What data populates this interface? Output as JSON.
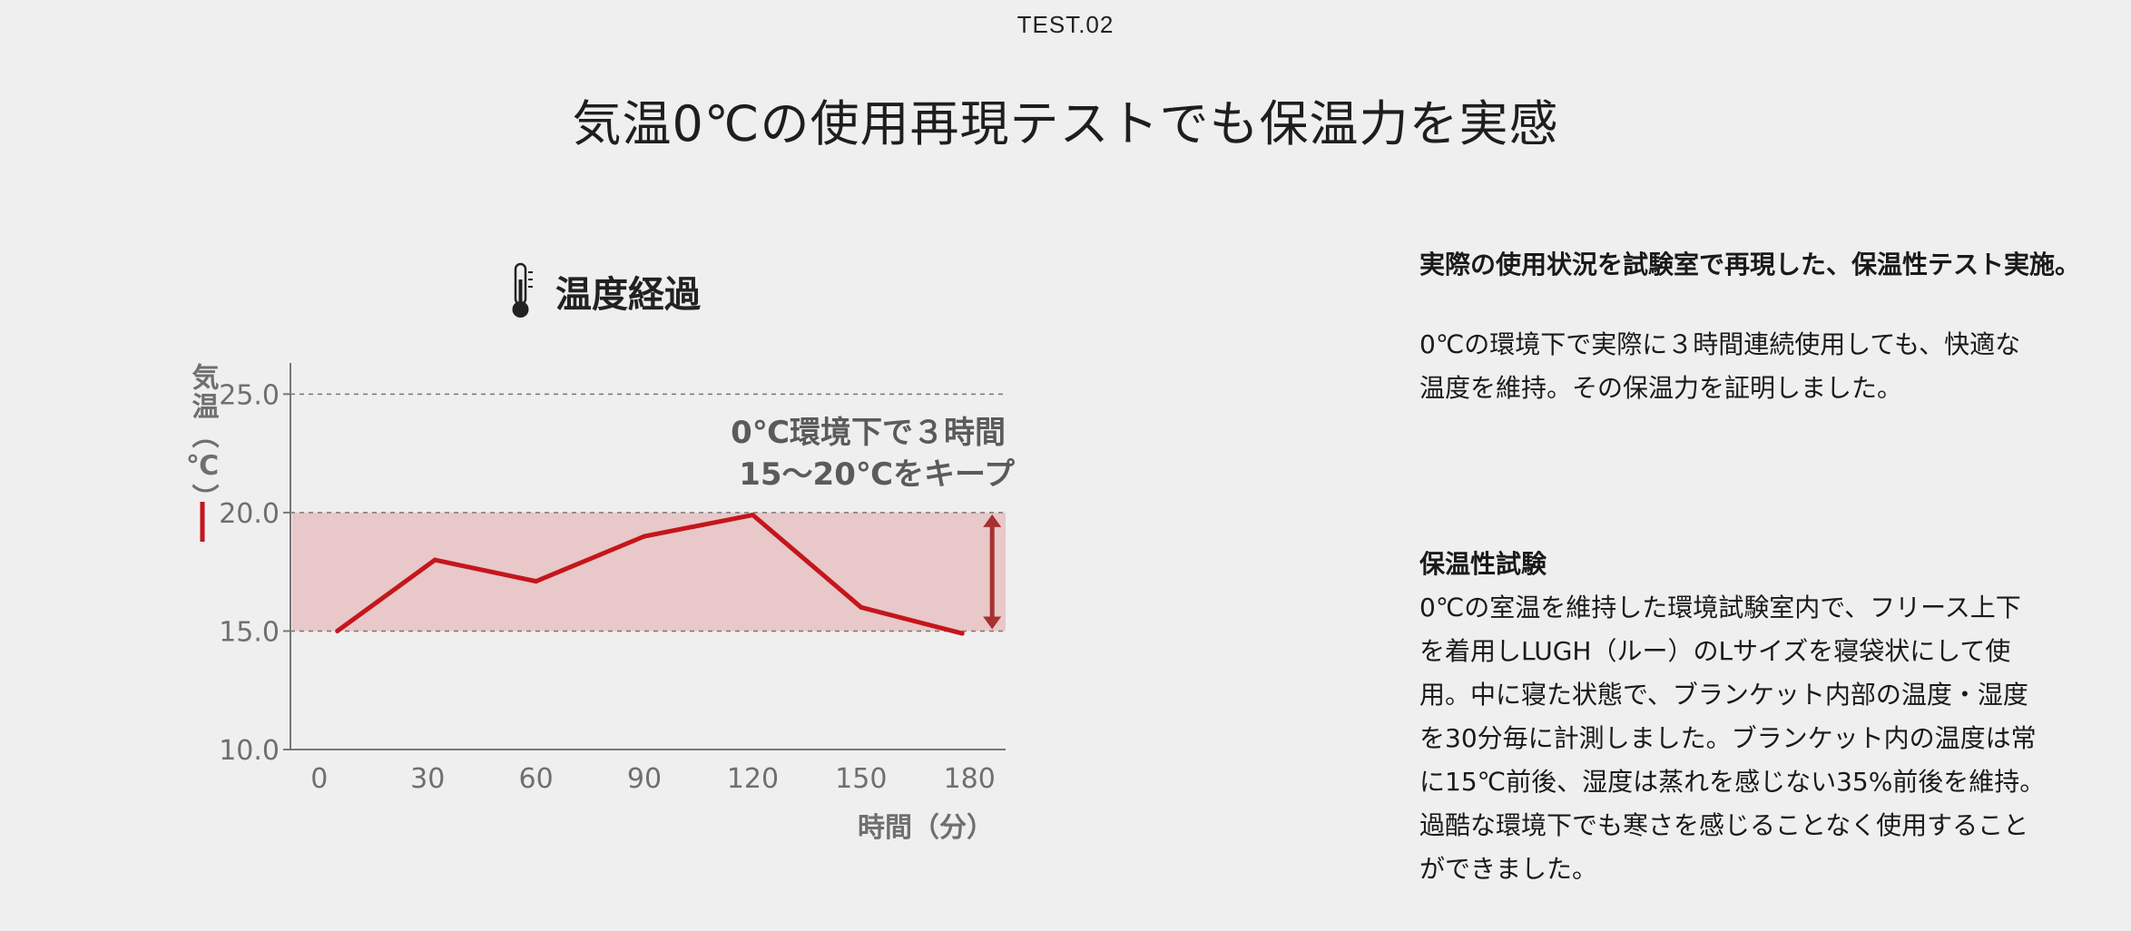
{
  "header": {
    "test_label": "TEST.02",
    "title": "気温0℃の使用再現テストでも保温力を実感"
  },
  "chart_heading": {
    "icon": "thermometer-icon",
    "text": "温度経過"
  },
  "chart_data": {
    "type": "line",
    "title": "温度経過",
    "xlabel": "時間（分）",
    "ylabel": "気温（℃）",
    "x": [
      0,
      30,
      60,
      90,
      120,
      150,
      180
    ],
    "x_tick_labels": [
      "0",
      "30",
      "60",
      "90",
      "120",
      "150",
      "180"
    ],
    "y_tick_labels": [
      "25.0",
      "20.0",
      "15.0",
      "10.0"
    ],
    "y_ticks": [
      25,
      20,
      15,
      10
    ],
    "ylim": [
      10,
      26.2
    ],
    "xlim": [
      -8,
      190
    ],
    "series": [
      {
        "x": [
          5,
          32,
          60,
          90,
          120,
          150,
          178
        ],
        "values": [
          15.0,
          18.0,
          17.1,
          19.0,
          19.9,
          16.0,
          14.9
        ],
        "color": "#c4161c"
      }
    ],
    "band": {
      "y_min": 15,
      "y_max": 20,
      "color": "#e8c8c9"
    },
    "annotation": {
      "line1": "0℃環境下で３時間",
      "line2": "15〜20℃をキープ"
    },
    "grid": "dashed horizontal at ticks",
    "legend": "left"
  },
  "right": {
    "lead": "実際の使用状況を試験室で再現した、保温性テスト実施。",
    "lead_body_1": "0℃の環境下で実際に３時間連続使用しても、快適な",
    "lead_body_2": "温度を維持。その保温力を証明しました。",
    "test_heading": "保温性試験",
    "test_lines": [
      "0℃の室温を維持した環境試験室内で、フリース上下",
      "を着用しLUGH（ルー）のLサイズを寝袋状にして使",
      "用。中に寝た状態で、ブランケット内部の温度・湿度",
      "を30分毎に計測しました。ブランケット内の温度は常",
      "に15℃前後、湿度は蒸れを感じない35%前後を維持。",
      "過酷な環境下でも寒さを感じることなく使用すること",
      "ができました。"
    ]
  }
}
